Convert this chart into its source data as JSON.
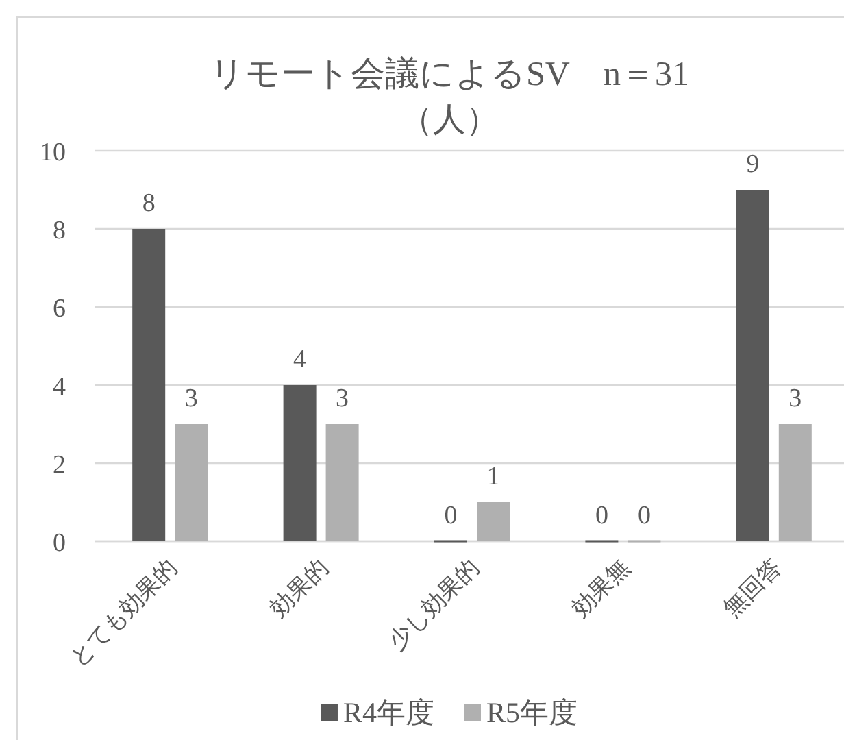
{
  "chart_data": {
    "type": "bar",
    "title": "リモート会議によるSV　n＝31",
    "subtitle": "（人）",
    "categories": [
      "とても効果的",
      "効果的",
      "少し効果的",
      "効果無",
      "無回答"
    ],
    "series": [
      {
        "name": "R4年度",
        "color": "#595959",
        "values": [
          8,
          4,
          0,
          0,
          9
        ]
      },
      {
        "name": "R5年度",
        "color": "#b0b0b0",
        "values": [
          3,
          3,
          1,
          0,
          3
        ]
      }
    ],
    "ylim": [
      0,
      10
    ],
    "yticks": [
      0,
      2,
      4,
      6,
      8,
      10
    ],
    "grid": "y",
    "legend": "bottom",
    "data_labels": true
  }
}
